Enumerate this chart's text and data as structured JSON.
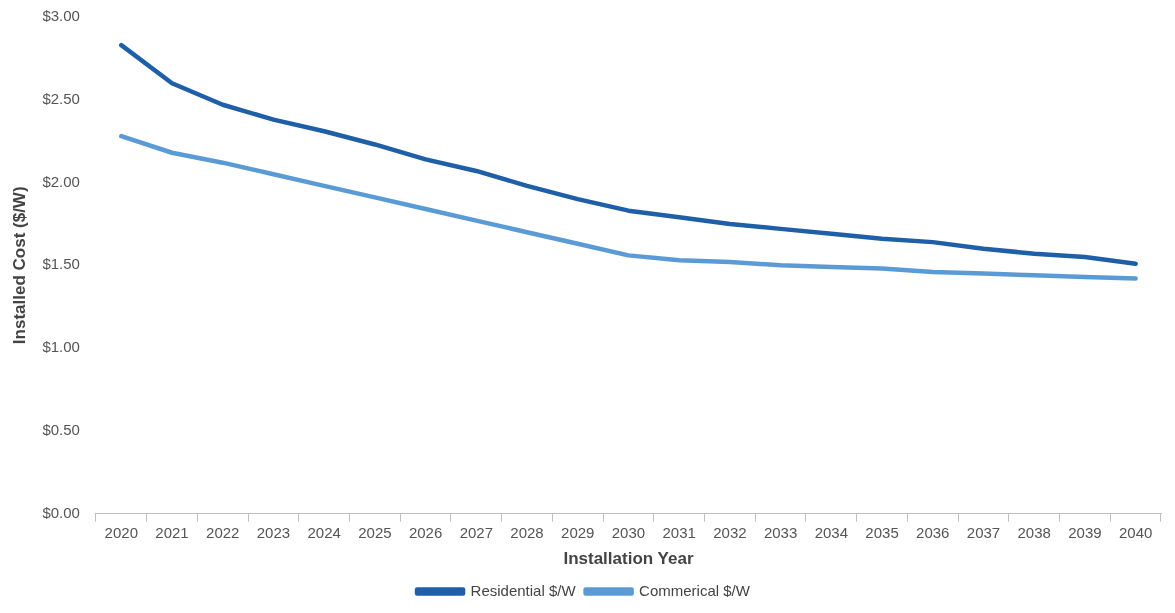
{
  "chart_data": {
    "type": "line",
    "xlabel": "Installation Year",
    "ylabel": "Installed Cost ($/W)",
    "categories": [
      "2020",
      "2021",
      "2022",
      "2023",
      "2024",
      "2025",
      "2026",
      "2027",
      "2028",
      "2029",
      "2030",
      "2031",
      "2032",
      "2033",
      "2034",
      "2035",
      "2036",
      "2037",
      "2038",
      "2039",
      "2040"
    ],
    "series": [
      {
        "name": "Residential $/W",
        "color": "#1f5fa8",
        "values": [
          2.83,
          2.6,
          2.47,
          2.38,
          2.31,
          2.23,
          2.14,
          2.07,
          1.98,
          1.9,
          1.83,
          1.79,
          1.75,
          1.72,
          1.69,
          1.66,
          1.64,
          1.6,
          1.57,
          1.55,
          1.51
        ]
      },
      {
        "name": "Commerical $/W",
        "color": "#5b9bd5",
        "values": [
          2.28,
          2.18,
          2.12,
          2.05,
          1.98,
          1.91,
          1.84,
          1.77,
          1.7,
          1.63,
          1.56,
          1.53,
          1.52,
          1.5,
          1.49,
          1.48,
          1.46,
          1.45,
          1.44,
          1.43,
          1.42
        ]
      }
    ],
    "ylim": [
      0,
      3
    ],
    "yticks": [
      {
        "value": 0,
        "label": "$0.00"
      },
      {
        "value": 0.5,
        "label": "$0.50"
      },
      {
        "value": 1,
        "label": "$1.00"
      },
      {
        "value": 1.5,
        "label": "$1.50"
      },
      {
        "value": 2,
        "label": "$2.00"
      },
      {
        "value": 2.5,
        "label": "$2.50"
      },
      {
        "value": 3,
        "label": "$3.00"
      }
    ],
    "grid": false,
    "legend": "bottom",
    "marker": "none",
    "line_style": "solid"
  }
}
